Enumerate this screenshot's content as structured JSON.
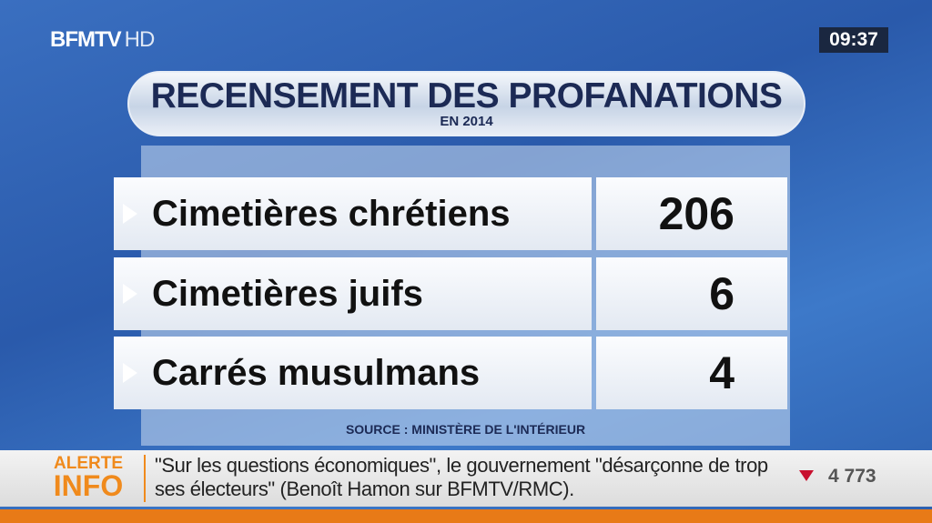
{
  "header": {
    "channel": "BFMTV",
    "channel_suffix": "HD",
    "clock": "09:37"
  },
  "graphic": {
    "title": "RECENSEMENT DES PROFANATIONS",
    "subtitle": "EN 2014",
    "table": {
      "rows": [
        [
          "Cimetières chrétiens",
          206
        ],
        [
          "Cimetières juifs",
          6
        ],
        [
          "Carrés musulmans",
          4
        ]
      ]
    },
    "source": "SOURCE : MINISTÈRE DE L'INTÉRIEUR"
  },
  "ticker": {
    "badge_top": "ALERTE",
    "badge_bottom": "INFO",
    "text": "\"Sur les questions économiques\", le gouvernement \"désarçonne de trop ses électeurs\" (Benoît Hamon sur BFMTV/RMC).",
    "market": "4 773"
  }
}
